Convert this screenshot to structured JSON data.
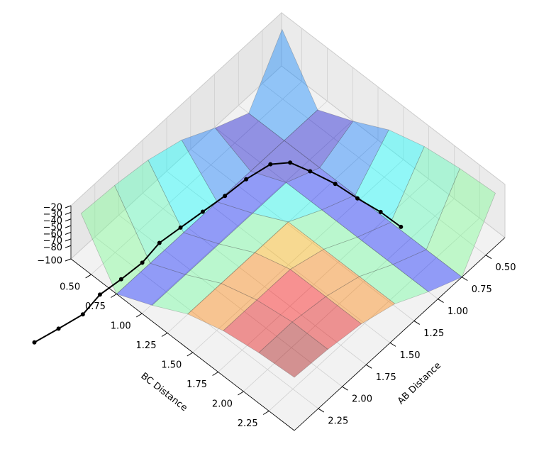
{
  "chart_data": {
    "type": "surface3d",
    "xlabel": "AB Distance",
    "ylabel": "BC Distance",
    "xlim": [
      0.3,
      2.5
    ],
    "ylim": [
      0.3,
      2.5
    ],
    "zlim": [
      -100,
      -20
    ],
    "xticks": [
      {
        "value": 0.5,
        "label": "0.50"
      },
      {
        "value": 0.75,
        "label": "0.75"
      },
      {
        "value": 1.0,
        "label": "1.00"
      },
      {
        "value": 1.25,
        "label": "1.25"
      },
      {
        "value": 1.5,
        "label": "1.50"
      },
      {
        "value": 1.75,
        "label": "1.75"
      },
      {
        "value": 2.0,
        "label": "2.00"
      },
      {
        "value": 2.25,
        "label": "2.25"
      }
    ],
    "yticks": [
      {
        "value": 0.5,
        "label": "0.50"
      },
      {
        "value": 0.75,
        "label": "0.75"
      },
      {
        "value": 1.0,
        "label": "1.00"
      },
      {
        "value": 1.25,
        "label": "1.25"
      },
      {
        "value": 1.5,
        "label": "1.50"
      },
      {
        "value": 1.75,
        "label": "1.75"
      },
      {
        "value": 2.0,
        "label": "2.00"
      },
      {
        "value": 2.25,
        "label": "2.25"
      }
    ],
    "zticks": [
      {
        "value": -20,
        "label": "−20"
      },
      {
        "value": -30,
        "label": "−30"
      },
      {
        "value": -40,
        "label": "−40"
      },
      {
        "value": -50,
        "label": "−50"
      },
      {
        "value": -60,
        "label": "−60"
      },
      {
        "value": -70,
        "label": "−70"
      },
      {
        "value": -80,
        "label": "−80"
      },
      {
        "value": -100,
        "label": "−100"
      }
    ],
    "x": [
      0.4,
      0.75,
      1.1,
      1.45,
      1.8,
      2.15,
      2.5
    ],
    "y": [
      0.4,
      0.75,
      1.1,
      1.45,
      1.8,
      2.15,
      2.5
    ],
    "z": [
      [
        -20,
        -100,
        -76,
        -48,
        -32,
        -24,
        -20
      ],
      [
        -100,
        -100,
        -100,
        -100,
        -100,
        -100,
        -100
      ],
      [
        -76,
        -100,
        -76,
        -76,
        -76,
        -76,
        -76
      ],
      [
        -48,
        -100,
        -76,
        -48,
        -48,
        -48,
        -48
      ],
      [
        -32,
        -100,
        -76,
        -48,
        -32,
        -32,
        -32
      ],
      [
        -24,
        -100,
        -76,
        -48,
        -32,
        -24,
        -24
      ],
      [
        -20,
        -100,
        -76,
        -48,
        -32,
        -24,
        -20
      ]
    ],
    "trajectory": {
      "color": "#000000",
      "x": [
        0.75,
        0.75,
        0.78,
        0.8,
        0.85,
        0.9,
        1.0,
        1.2,
        1.4,
        1.6,
        1.8,
        2.0,
        2.2,
        2.4,
        2.6,
        2.8,
        3.0,
        3.2
      ],
      "y": [
        1.9,
        1.7,
        1.5,
        1.3,
        1.1,
        0.95,
        0.85,
        0.8,
        0.78,
        0.75,
        0.72,
        0.7,
        0.72,
        0.7,
        0.68,
        0.7,
        0.65,
        0.6
      ],
      "z": [
        -95,
        -96,
        -95,
        -94,
        -92,
        -90,
        -91,
        -93,
        -94,
        -95,
        -96,
        -95,
        -96,
        -97,
        -96,
        -97,
        -98,
        -98
      ]
    }
  }
}
